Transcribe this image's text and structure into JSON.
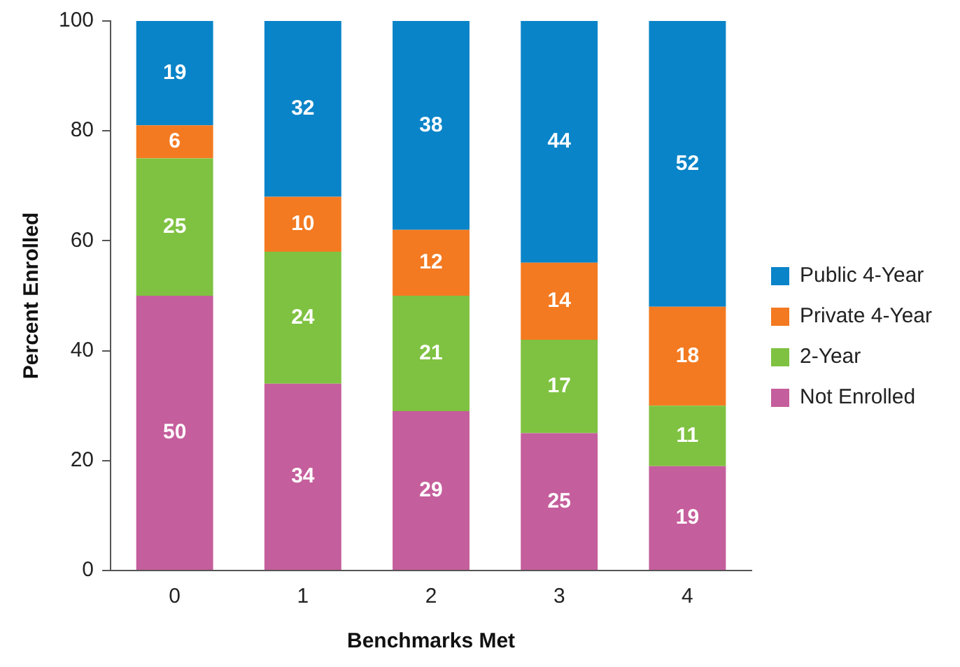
{
  "chart_data": {
    "type": "bar",
    "stacked": true,
    "xlabel": "Benchmarks Met",
    "ylabel": "Percent Enrolled",
    "categories": [
      "0",
      "1",
      "2",
      "3",
      "4"
    ],
    "series": [
      {
        "name": "Not Enrolled",
        "color": "#c55e9c",
        "values": [
          50,
          34,
          29,
          25,
          19
        ]
      },
      {
        "name": "2-Year",
        "color": "#7fc241",
        "values": [
          25,
          24,
          21,
          17,
          11
        ]
      },
      {
        "name": "Private 4-Year",
        "color": "#f37a21",
        "values": [
          6,
          10,
          12,
          14,
          18
        ]
      },
      {
        "name": "Public 4-Year",
        "color": "#0a84c8",
        "values": [
          19,
          32,
          38,
          44,
          52
        ]
      }
    ],
    "ylim": [
      0,
      100
    ],
    "yticks": [
      0,
      20,
      40,
      60,
      80,
      100
    ],
    "grid": false,
    "legend": "right",
    "data_labels": true
  }
}
